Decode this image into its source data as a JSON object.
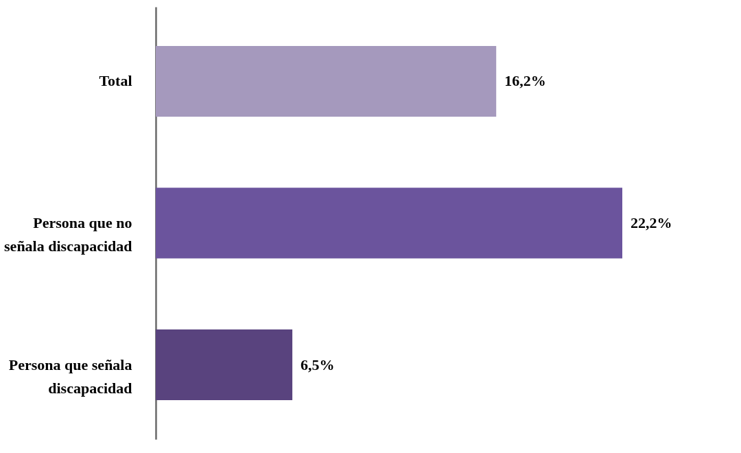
{
  "chart_data": {
    "type": "bar",
    "orientation": "horizontal",
    "categories": [
      "Total",
      "Persona que no señala discapacidad",
      "Persona que señala discapacidad"
    ],
    "values": [
      16.2,
      22.2,
      6.5
    ],
    "colors": [
      "#a599bd",
      "#6b549d",
      "#59437e"
    ],
    "value_labels": [
      "16,2%",
      "22,2%",
      "6,5%"
    ]
  }
}
